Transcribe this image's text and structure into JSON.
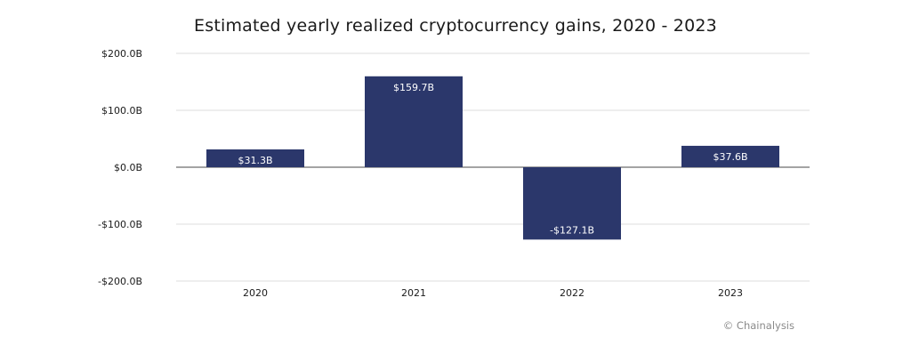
{
  "chart_data": {
    "type": "bar",
    "title": "Estimated yearly realized cryptocurrency gains, 2020 - 2023",
    "xlabel": "",
    "ylabel": "",
    "categories": [
      "2020",
      "2021",
      "2022",
      "2023"
    ],
    "values": [
      31.3,
      159.7,
      -127.1,
      37.6
    ],
    "data_labels": [
      "$31.3B",
      "$159.7B",
      "-$127.1B",
      "$37.6B"
    ],
    "ylim": [
      -200,
      200
    ],
    "yticks": [
      200,
      100,
      0,
      -100,
      -200
    ],
    "ytick_labels": [
      "$200.0B",
      "$100.0B",
      "$0.0B",
      "-$100.0B",
      "-$200.0B"
    ],
    "grid": true,
    "bar_color": "#2b376b",
    "legend": "none"
  },
  "credit": "© Chainalysis"
}
